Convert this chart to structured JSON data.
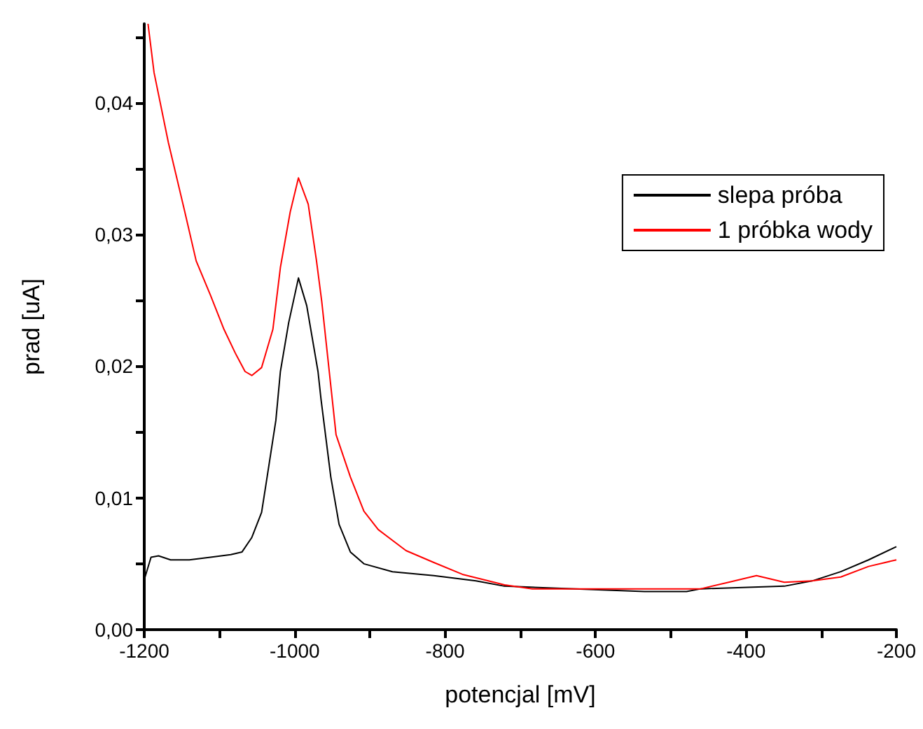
{
  "chart_data": {
    "type": "line",
    "xlabel": "potencjal [mV]",
    "ylabel": "prad [uA]",
    "xlim": [
      -1200,
      -200
    ],
    "xticks": [
      -1200,
      {
        "value": -1100,
        "label": null
      },
      -1000,
      {
        "value": -900,
        "label": null
      },
      -800,
      {
        "value": -700,
        "label": null
      },
      -600,
      {
        "value": -500,
        "label": null
      },
      -400,
      {
        "value": -300,
        "label": null
      },
      -200
    ],
    "ylim": [
      0,
      0.046
    ],
    "yticks": [
      {
        "value": 0,
        "label": "0,00"
      },
      {
        "value": 0.005,
        "label": null
      },
      {
        "value": 0.01,
        "label": "0,01"
      },
      {
        "value": 0.015,
        "label": null
      },
      {
        "value": 0.02,
        "label": "0,02"
      },
      {
        "value": 0.025,
        "label": null
      },
      {
        "value": 0.03,
        "label": "0,03"
      },
      {
        "value": 0.035,
        "label": null
      },
      {
        "value": 0.04,
        "label": "0,04"
      },
      {
        "value": 0.045,
        "label": null
      }
    ],
    "grid": false,
    "legend": "top right",
    "marker": "none",
    "line_style": "solid",
    "series": [
      {
        "name": "slepa próba",
        "color": "#000000",
        "x": [
          -1200,
          -1191,
          -1181,
          -1165,
          -1140,
          -1112,
          -1085,
          -1070,
          -1057,
          -1044,
          -1038,
          -1025,
          -1019,
          -1008,
          -995,
          -984,
          -969,
          -965,
          -952,
          -941,
          -926,
          -908,
          -870,
          -815,
          -759,
          -721,
          -535,
          -479,
          -460,
          -349,
          -312,
          -274,
          -237,
          -200
        ],
        "values": [
          0.0038,
          0.0055,
          0.0056,
          0.0053,
          0.0053,
          0.0055,
          0.0057,
          0.0059,
          0.007,
          0.0089,
          0.0111,
          0.0159,
          0.0196,
          0.0233,
          0.0267,
          0.0246,
          0.0196,
          0.0175,
          0.0116,
          0.008,
          0.0059,
          0.005,
          0.0044,
          0.0041,
          0.0037,
          0.0033,
          0.0029,
          0.0029,
          0.0031,
          0.0033,
          0.0037,
          0.0044,
          0.0053,
          0.0063
        ]
      },
      {
        "name": "1 próbka wody",
        "color": "#ff0000",
        "x": [
          -1195,
          -1187,
          -1168,
          -1146,
          -1131,
          -1112,
          -1094,
          -1079,
          -1066,
          -1057,
          -1044,
          -1029,
          -1019,
          -1006,
          -995,
          -982,
          -971,
          -964,
          -945,
          -926,
          -908,
          -889,
          -852,
          -815,
          -777,
          -721,
          -684,
          -460,
          -423,
          -386,
          -349,
          -312,
          -274,
          -237,
          -200
        ],
        "values": [
          0.046,
          0.0423,
          0.037,
          0.0317,
          0.028,
          0.0254,
          0.0228,
          0.021,
          0.0196,
          0.0193,
          0.0199,
          0.0228,
          0.0275,
          0.0317,
          0.0343,
          0.0323,
          0.028,
          0.0249,
          0.0148,
          0.0116,
          0.009,
          0.0076,
          0.006,
          0.0051,
          0.0042,
          0.0034,
          0.0031,
          0.0031,
          0.0036,
          0.0041,
          0.0036,
          0.0037,
          0.004,
          0.0048,
          0.0053
        ]
      }
    ]
  }
}
